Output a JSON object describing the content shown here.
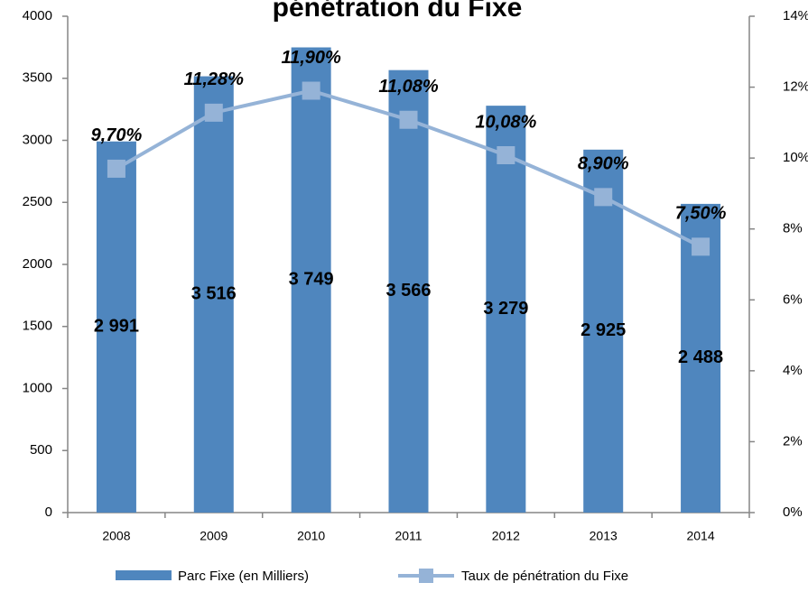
{
  "chart_data": {
    "type": "bar",
    "title": "pénétration du Fixe",
    "categories": [
      "2008",
      "2009",
      "2010",
      "2011",
      "2012",
      "2013",
      "2014"
    ],
    "series": [
      {
        "name": "Parc Fixe (en Milliers)",
        "color": "#4f86be",
        "values": [
          2991,
          3516,
          3749,
          3566,
          3279,
          2925,
          2488
        ],
        "value_labels": [
          "2 991",
          "3 516",
          "3 749",
          "3 566",
          "3 279",
          "2 925",
          "2 488"
        ]
      },
      {
        "name": "Taux de pénétration du Fixe",
        "type": "line",
        "axis": "y2",
        "color": "#95b3d7",
        "values": [
          9.7,
          11.28,
          11.9,
          11.08,
          10.08,
          8.9,
          7.5
        ],
        "value_labels": [
          "9,70%",
          "11,28%",
          "11,90%",
          "11,08%",
          "10,08%",
          "8,90%",
          "7,50%"
        ]
      }
    ],
    "ylim": [
      0,
      4000
    ],
    "yticks": [
      0,
      500,
      1000,
      1500,
      2000,
      2500,
      3000,
      3500,
      4000
    ],
    "y2lim": [
      0,
      14
    ],
    "y2ticks": [
      {
        "value": 0,
        "label": "0%"
      },
      {
        "value": 2,
        "label": "2%"
      },
      {
        "value": 4,
        "label": "4%"
      },
      {
        "value": 6,
        "label": "6%"
      },
      {
        "value": 8,
        "label": "8%"
      },
      {
        "value": 10,
        "label": "10%"
      },
      {
        "value": 12,
        "label": "12%"
      },
      {
        "value": 14,
        "label": "14%"
      }
    ],
    "legend": "bottom"
  }
}
